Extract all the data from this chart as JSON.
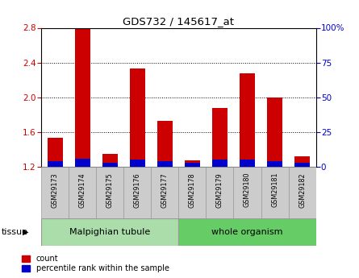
{
  "title": "GDS732 / 145617_at",
  "samples": [
    "GSM29173",
    "GSM29174",
    "GSM29175",
    "GSM29176",
    "GSM29177",
    "GSM29178",
    "GSM29179",
    "GSM29180",
    "GSM29181",
    "GSM29182"
  ],
  "count_values": [
    1.53,
    2.8,
    1.35,
    2.33,
    1.73,
    1.27,
    1.88,
    2.28,
    2.0,
    1.32
  ],
  "percentile_values": [
    4,
    6,
    3,
    5,
    4,
    3,
    5,
    5,
    4,
    3
  ],
  "bar_bottom": 1.2,
  "ylim_left": [
    1.2,
    2.8
  ],
  "ylim_right": [
    0,
    100
  ],
  "yticks_left": [
    1.2,
    1.6,
    2.0,
    2.4,
    2.8
  ],
  "yticks_right": [
    0,
    25,
    50,
    75,
    100
  ],
  "ytick_labels_right": [
    "0",
    "25",
    "50",
    "75",
    "100%"
  ],
  "count_color": "#cc0000",
  "percentile_color": "#0000cc",
  "tissue_groups": [
    {
      "label": "Malpighian tubule",
      "n_samples": 5,
      "color": "#aaddaa"
    },
    {
      "label": "whole organism",
      "n_samples": 5,
      "color": "#66cc66"
    }
  ],
  "tissue_label": "tissue",
  "legend_count": "count",
  "legend_percentile": "percentile rank within the sample",
  "bar_width": 0.55,
  "tick_label_color_left": "#cc0000",
  "tick_label_color_right": "#0000cc",
  "background_color": "#ffffff",
  "xticklabel_bg": "#cccccc"
}
